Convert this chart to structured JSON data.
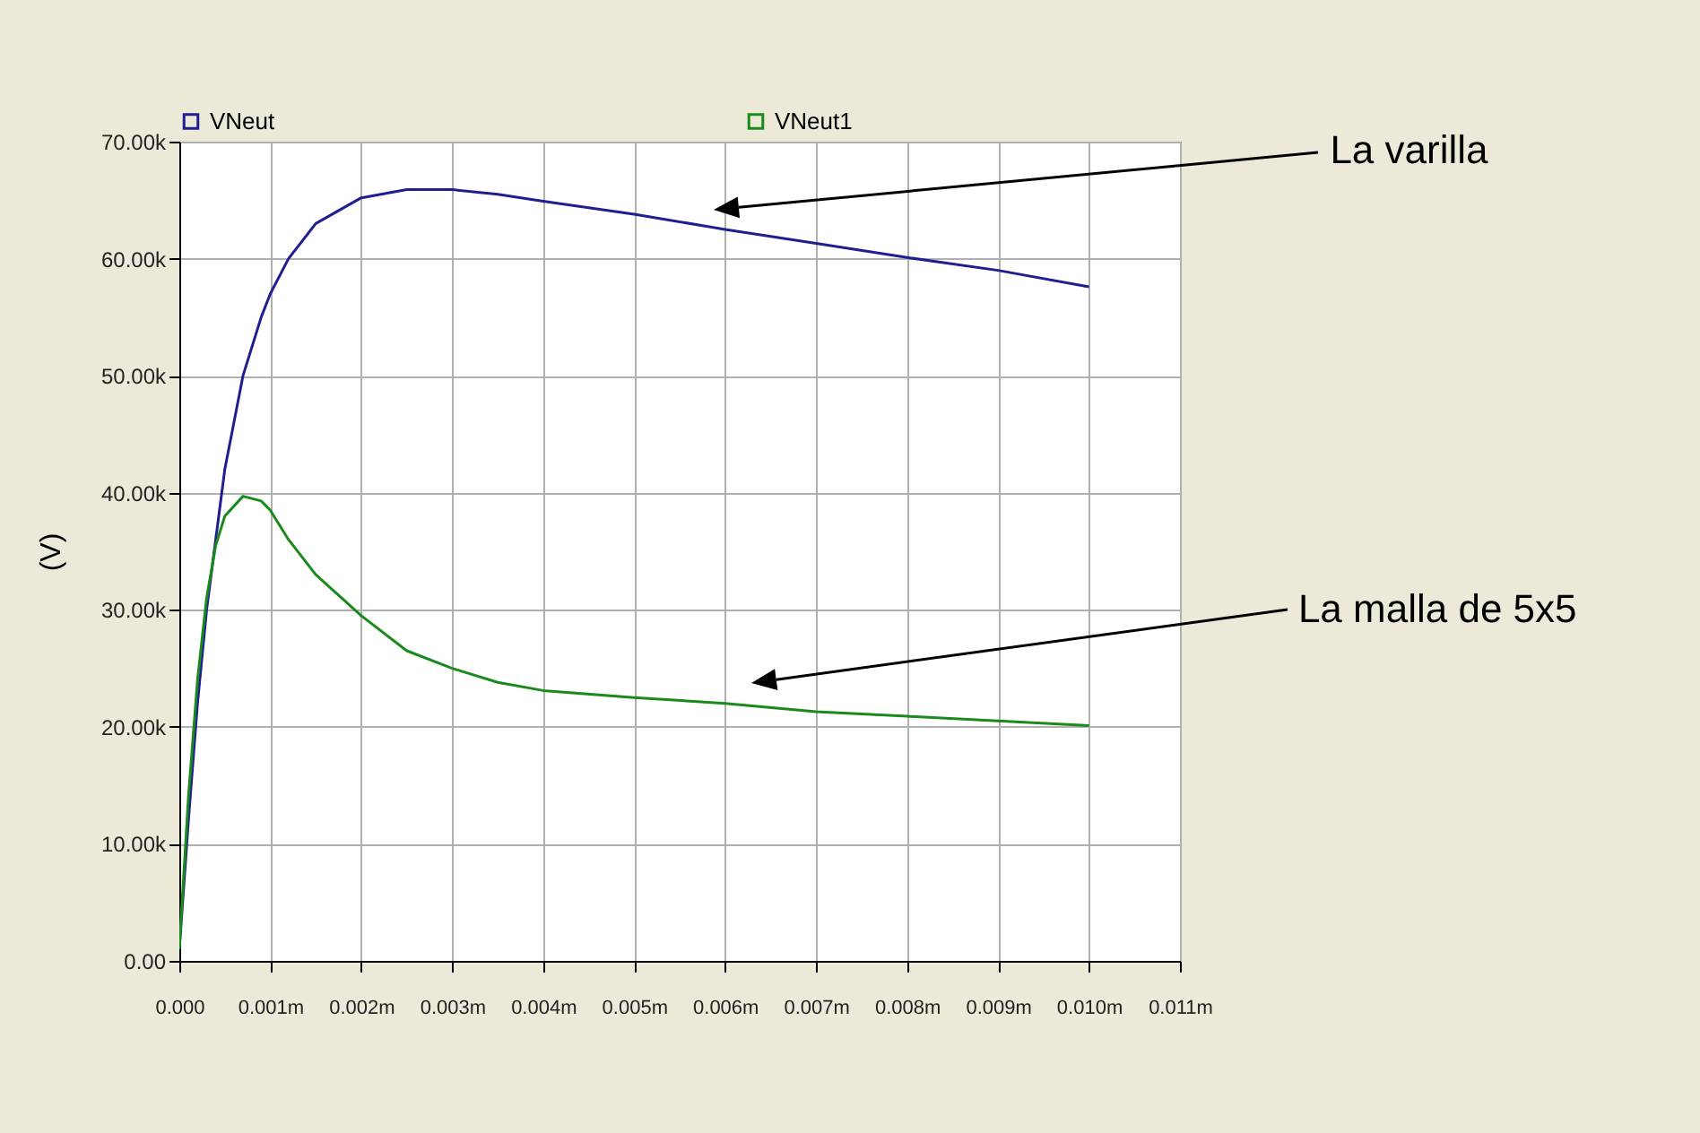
{
  "chart_data": {
    "type": "line",
    "ylabel": "(V)",
    "legend": "top",
    "grid": true,
    "xlim": [
      0,
      0.011
    ],
    "xticks": [
      {
        "value": 0,
        "label": "0.000"
      },
      {
        "value": 0.001,
        "label": "0.001m"
      },
      {
        "value": 0.002,
        "label": "0.002m"
      },
      {
        "value": 0.003,
        "label": "0.003m"
      },
      {
        "value": 0.004,
        "label": "0.004m"
      },
      {
        "value": 0.005,
        "label": "0.005m"
      },
      {
        "value": 0.006,
        "label": "0.006m"
      },
      {
        "value": 0.007,
        "label": "0.007m"
      },
      {
        "value": 0.008,
        "label": "0.008m"
      },
      {
        "value": 0.009,
        "label": "0.009m"
      },
      {
        "value": 0.01,
        "label": "0.010m"
      },
      {
        "value": 0.011,
        "label": "0.011m"
      }
    ],
    "ylim": [
      0,
      70000
    ],
    "yticks": [
      {
        "value": 0,
        "label": "0.00"
      },
      {
        "value": 10000,
        "label": "10.00k"
      },
      {
        "value": 20000,
        "label": "20.00k"
      },
      {
        "value": 30000,
        "label": "30.00k"
      },
      {
        "value": 40000,
        "label": "40.00k"
      },
      {
        "value": 50000,
        "label": "50.00k"
      },
      {
        "value": 60000,
        "label": "60.00k"
      },
      {
        "value": 70000,
        "label": "70.00k"
      }
    ],
    "x": [
      0,
      0.0001,
      0.0002,
      0.0003,
      0.0004,
      0.0005,
      0.0007,
      0.0009,
      0.001,
      0.0012,
      0.0015,
      0.002,
      0.0025,
      0.003,
      0.0035,
      0.004,
      0.005,
      0.006,
      0.007,
      0.008,
      0.009,
      0.01
    ],
    "series": [
      {
        "name": "VNeut",
        "color": "#1f1f8f",
        "values": [
          1000,
          12000,
          22000,
          30000,
          36000,
          42000,
          50000,
          55000,
          57000,
          60000,
          63000,
          65200,
          65900,
          65900,
          65500,
          64900,
          63800,
          62500,
          61300,
          60100,
          59000,
          57600
        ]
      },
      {
        "name": "VNeut1",
        "color": "#1a8a1a",
        "values": [
          1000,
          14000,
          24000,
          31000,
          35500,
          38000,
          39700,
          39300,
          38500,
          36000,
          33000,
          29500,
          26500,
          25000,
          23800,
          23100,
          22500,
          22000,
          21300,
          20900,
          20500,
          20100
        ]
      }
    ],
    "annotations": [
      "La varilla",
      "La malla de 5x5"
    ]
  }
}
